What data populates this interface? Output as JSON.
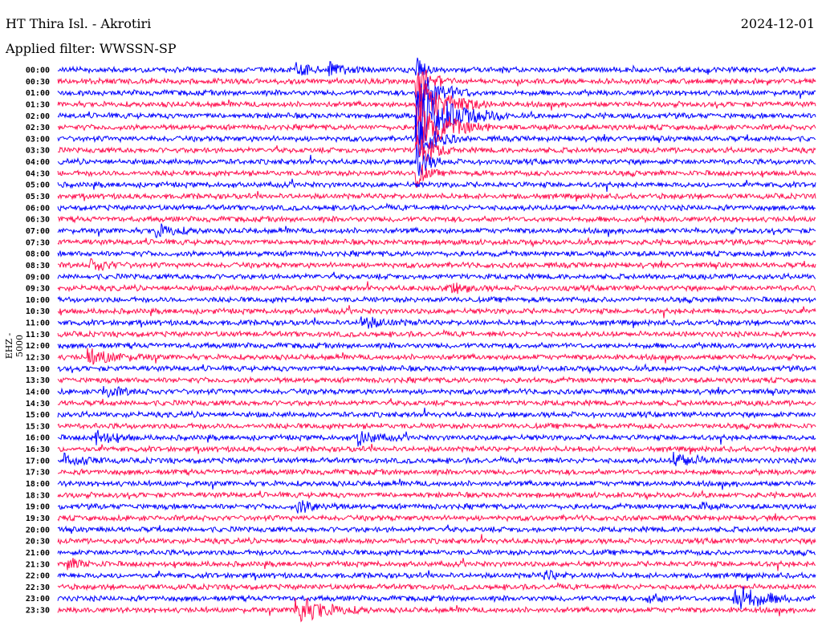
{
  "header": {
    "station": "HT Thira Isl. - Akrotiri",
    "filter": "Applied filter: WWSSN-SP",
    "date": "2024-12-01",
    "channel_label": "EHZ - 5000"
  },
  "colors": {
    "odd": "#0000ff",
    "even": "#ff1050"
  },
  "chart_data": {
    "type": "line",
    "title": "HT Thira Isl. - Akrotiri",
    "ylabel": "EHZ - 5000",
    "row_minutes": 30,
    "row_labels": [
      "00:00",
      "00:30",
      "01:00",
      "01:30",
      "02:00",
      "02:30",
      "03:00",
      "03:30",
      "04:00",
      "04:30",
      "05:00",
      "05:30",
      "06:00",
      "06:30",
      "07:00",
      "07:30",
      "08:00",
      "08:30",
      "09:00",
      "09:30",
      "10:00",
      "10:30",
      "11:00",
      "11:30",
      "12:00",
      "12:30",
      "13:00",
      "13:30",
      "14:00",
      "14:30",
      "15:00",
      "15:30",
      "16:00",
      "16:30",
      "17:00",
      "17:30",
      "18:00",
      "18:30",
      "19:00",
      "19:30",
      "20:00",
      "20:30",
      "21:00",
      "21:30",
      "22:00",
      "22:30",
      "23:00",
      "23:30"
    ],
    "events": [
      {
        "row": 0,
        "minute": 14.2,
        "amp": 6,
        "dur": 0.3
      },
      {
        "row": 1,
        "minute": 14.2,
        "amp": 8,
        "dur": 0.5
      },
      {
        "row": 2,
        "minute": 14.2,
        "amp": 10,
        "dur": 0.8
      },
      {
        "row": 3,
        "minute": 14.2,
        "amp": 12,
        "dur": 1.0
      },
      {
        "row": 4,
        "minute": 14.2,
        "amp": 14,
        "dur": 1.2
      },
      {
        "row": 5,
        "minute": 14.2,
        "amp": 12,
        "dur": 1.0
      },
      {
        "row": 6,
        "minute": 14.2,
        "amp": 10,
        "dur": 0.6
      },
      {
        "row": 7,
        "minute": 14.2,
        "amp": 9,
        "dur": 0.5
      },
      {
        "row": 8,
        "minute": 14.2,
        "amp": 8,
        "dur": 0.4
      },
      {
        "row": 9,
        "minute": 14.2,
        "amp": 6,
        "dur": 0.3
      },
      {
        "row": 0,
        "minute": 9.4,
        "amp": 2.5,
        "dur": 0.6
      },
      {
        "row": 0,
        "minute": 10.7,
        "amp": 2.5,
        "dur": 0.6
      },
      {
        "row": 14,
        "minute": 3.9,
        "amp": 2.5,
        "dur": 0.7
      },
      {
        "row": 17,
        "minute": 1.3,
        "amp": 2.5,
        "dur": 0.6
      },
      {
        "row": 19,
        "minute": 15.4,
        "amp": 2.5,
        "dur": 0.6
      },
      {
        "row": 22,
        "minute": 12.0,
        "amp": 2.5,
        "dur": 0.8
      },
      {
        "row": 25,
        "minute": 1.2,
        "amp": 3,
        "dur": 1.0
      },
      {
        "row": 28,
        "minute": 1.8,
        "amp": 2.5,
        "dur": 0.6
      },
      {
        "row": 32,
        "minute": 1.5,
        "amp": 3,
        "dur": 0.6
      },
      {
        "row": 32,
        "minute": 11.9,
        "amp": 3,
        "dur": 0.6
      },
      {
        "row": 34,
        "minute": 0.3,
        "amp": 2.5,
        "dur": 0.7
      },
      {
        "row": 34,
        "minute": 24.4,
        "amp": 3,
        "dur": 0.8
      },
      {
        "row": 38,
        "minute": 9.5,
        "amp": 2.5,
        "dur": 0.7
      },
      {
        "row": 38,
        "minute": 25.4,
        "amp": 3,
        "dur": 0.2
      },
      {
        "row": 43,
        "minute": 0.4,
        "amp": 2,
        "dur": 0.6
      },
      {
        "row": 44,
        "minute": 19.3,
        "amp": 2,
        "dur": 0.4
      },
      {
        "row": 46,
        "minute": 26.8,
        "amp": 6,
        "dur": 0.9
      },
      {
        "row": 46,
        "minute": 23.3,
        "amp": 2,
        "dur": 0.5
      },
      {
        "row": 47,
        "minute": 9.4,
        "amp": 6,
        "dur": 1.0
      }
    ]
  }
}
